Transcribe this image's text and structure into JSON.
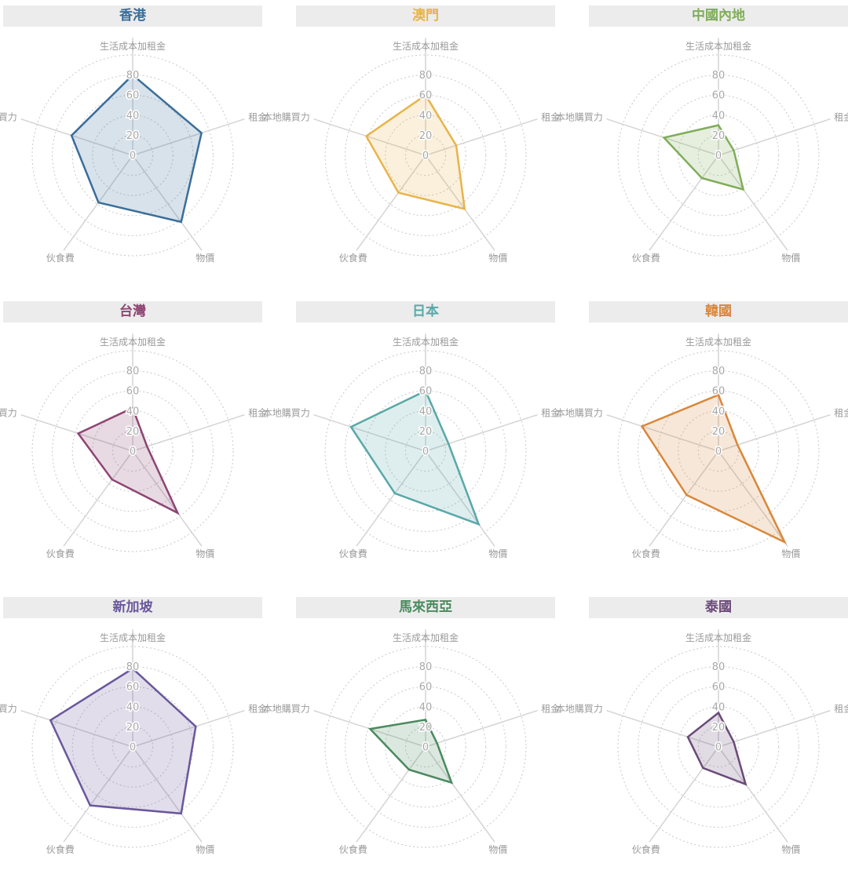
{
  "chart_data": {
    "type": "radar",
    "axes": [
      "生活成本加租金",
      "租金",
      "物價",
      "伙食費",
      "本地購買力"
    ],
    "ticks": [
      "0",
      "20",
      "40",
      "60",
      "80"
    ],
    "rmax": 100,
    "charts": [
      {
        "title": "香港",
        "color": "#3a6e9a",
        "values": [
          80,
          72,
          82,
          58,
          64
        ]
      },
      {
        "title": "澳門",
        "color": "#e8b44a",
        "values": [
          60,
          32,
          66,
          46,
          62
        ]
      },
      {
        "title": "中國內地",
        "color": "#80ad5a",
        "values": [
          30,
          16,
          42,
          28,
          57
        ]
      },
      {
        "title": "台灣",
        "color": "#8e4472",
        "values": [
          43,
          15,
          76,
          35,
          57
        ]
      },
      {
        "title": "日本",
        "color": "#5aa8a8",
        "values": [
          60,
          24,
          90,
          52,
          78
        ]
      },
      {
        "title": "韓國",
        "color": "#d9873a",
        "values": [
          56,
          20,
          112,
          54,
          80
        ]
      },
      {
        "title": "新加坡",
        "color": "#6a579c",
        "values": [
          78,
          66,
          82,
          72,
          86
        ]
      },
      {
        "title": "馬來西亞",
        "color": "#4a8a5e",
        "values": [
          27,
          12,
          44,
          28,
          58
        ]
      },
      {
        "title": "泰國",
        "color": "#6a4a78",
        "values": [
          34,
          16,
          46,
          26,
          32
        ]
      }
    ]
  }
}
